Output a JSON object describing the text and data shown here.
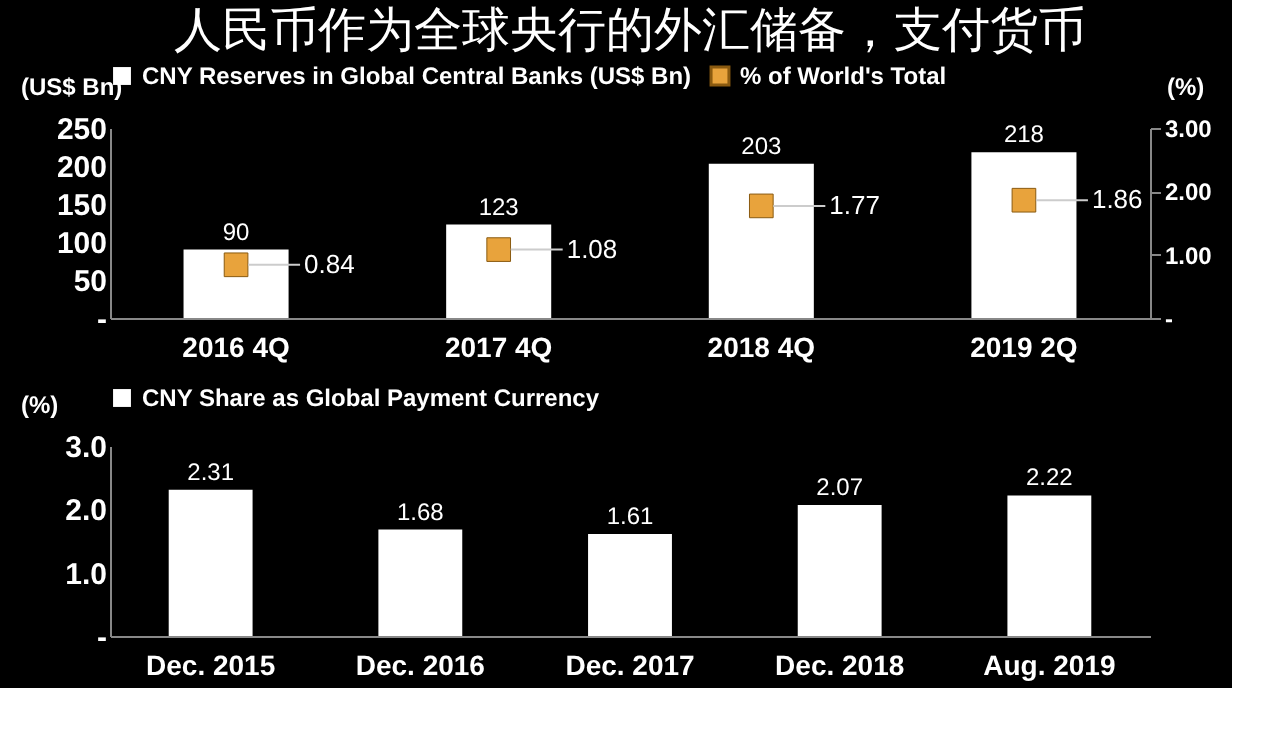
{
  "chart_data": [
    {
      "type": "bar",
      "title": "人民币作为全球央行的外汇储备，支付货币",
      "categories": [
        "2016 4Q",
        "2017 4Q",
        "2018 4Q",
        "2019 2Q"
      ],
      "ylabel": "(US$ Bn)",
      "y2label": "(%)",
      "ylim": [
        0,
        250
      ],
      "yticks": [
        {
          "value": 0,
          "label": "-"
        },
        50,
        100,
        150,
        200,
        250
      ],
      "y2lim": [
        0,
        3
      ],
      "y2ticks": [
        {
          "value": 0,
          "label": "-"
        },
        {
          "value": 1,
          "label": "1.00"
        },
        {
          "value": 2,
          "label": "2.00"
        },
        {
          "value": 3,
          "label": "3.00"
        }
      ],
      "series": [
        {
          "name": "CNY Reserves in Global Central Banks (US$ Bn)",
          "color": "#ffffff",
          "values": [
            90,
            123,
            203,
            218
          ]
        },
        {
          "name": "% of World's Total",
          "type": "scatter",
          "axis": "y2",
          "marker": "square",
          "color": "#e8a33c",
          "values": [
            0.84,
            1.08,
            1.77,
            1.86
          ]
        }
      ],
      "data_labels": true,
      "legend": "top",
      "grid": false
    },
    {
      "type": "bar",
      "categories": [
        "Dec. 2015",
        "Dec. 2016",
        "Dec. 2017",
        "Dec. 2018",
        "Aug. 2019"
      ],
      "ylabel": "(%)",
      "ylim": [
        0,
        3
      ],
      "yticks": [
        {
          "value": 0,
          "label": "-"
        },
        {
          "value": 1,
          "label": "1.0"
        },
        {
          "value": 2,
          "label": "2.0"
        },
        {
          "value": 3,
          "label": "3.0"
        }
      ],
      "series": [
        {
          "name": "CNY Share as Global Payment Currency",
          "color": "#ffffff",
          "values": [
            2.31,
            1.68,
            1.61,
            2.07,
            2.22
          ]
        }
      ],
      "data_labels": true,
      "legend": "top",
      "grid": false
    }
  ]
}
